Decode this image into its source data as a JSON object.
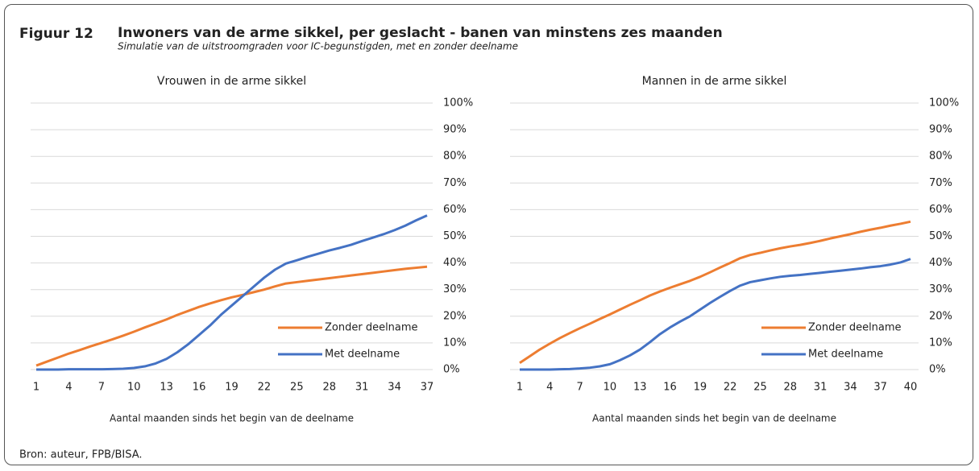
{
  "figure": {
    "number": "Figuur 12",
    "title": "Inwoners van de arme sikkel, per geslacht - banen van minstens zes maanden",
    "subtitle": "Simulatie van de uitstroomgraden voor IC-begunstigden, met en zonder deelname",
    "source": "Bron: auteur, FPB/BISA."
  },
  "chart_data": [
    {
      "type": "line",
      "title": "Vrouwen in de arme sikkel",
      "x_label": "Aantal maanden sinds het begin van de deelname",
      "x": [
        1,
        2,
        3,
        4,
        5,
        6,
        7,
        8,
        9,
        10,
        11,
        12,
        13,
        14,
        15,
        16,
        17,
        18,
        19,
        20,
        21,
        22,
        23,
        24,
        25,
        26,
        27,
        28,
        29,
        30,
        31,
        32,
        33,
        34,
        35,
        36,
        37
      ],
      "series": [
        {
          "name": "Zonder deelname",
          "color": "#ed7d31",
          "values": [
            1.5,
            3,
            4.5,
            6,
            7.3,
            8.7,
            10,
            11.3,
            12.7,
            14.2,
            15.8,
            17.3,
            18.8,
            20.5,
            22,
            23.5,
            24.8,
            26,
            27.1,
            28,
            29,
            30,
            31.2,
            32.3,
            32.8,
            33.3,
            33.8,
            34.3,
            34.8,
            35.3,
            35.8,
            36.3,
            36.8,
            37.3,
            37.8,
            38.2,
            38.6
          ]
        },
        {
          "name": "Met deelname",
          "color": "#4472c4",
          "values": [
            0,
            0,
            0,
            0.1,
            0.1,
            0.1,
            0.1,
            0.2,
            0.3,
            0.6,
            1.2,
            2.3,
            4,
            6.5,
            9.5,
            13,
            16.5,
            20.5,
            24,
            27.5,
            31,
            34.5,
            37.5,
            39.8,
            41,
            42.3,
            43.5,
            44.7,
            45.7,
            46.8,
            48.2,
            49.5,
            50.8,
            52.3,
            54,
            56,
            57.8
          ]
        }
      ],
      "xlim": [
        1,
        37
      ],
      "xticks": [
        1,
        4,
        7,
        10,
        13,
        16,
        19,
        22,
        25,
        28,
        31,
        34,
        37
      ],
      "ylim": [
        0,
        100
      ],
      "yticks": [
        {
          "value": 0,
          "label": "0%"
        },
        {
          "value": 10,
          "label": "10%"
        },
        {
          "value": 20,
          "label": "20%"
        },
        {
          "value": 30,
          "label": "30%"
        },
        {
          "value": 40,
          "label": "40%"
        },
        {
          "value": 50,
          "label": "50%"
        },
        {
          "value": 60,
          "label": "60%"
        },
        {
          "value": 70,
          "label": "70%"
        },
        {
          "value": 80,
          "label": "80%"
        },
        {
          "value": 90,
          "label": "90%"
        },
        {
          "value": 100,
          "label": "100%"
        }
      ],
      "y_axis_side": "right",
      "grid": true,
      "legend": "lower right"
    },
    {
      "type": "line",
      "title": "Mannen in de arme sikkel",
      "x_label": "Aantal maanden sinds het begin van de deelname",
      "x": [
        1,
        2,
        3,
        4,
        5,
        6,
        7,
        8,
        9,
        10,
        11,
        12,
        13,
        14,
        15,
        16,
        17,
        18,
        19,
        20,
        21,
        22,
        23,
        24,
        25,
        26,
        27,
        28,
        29,
        30,
        31,
        32,
        33,
        34,
        35,
        36,
        37,
        38,
        39,
        40
      ],
      "series": [
        {
          "name": "Zonder deelname",
          "color": "#ed7d31",
          "values": [
            2.5,
            5,
            7.5,
            9.7,
            11.8,
            13.7,
            15.5,
            17.2,
            19,
            20.7,
            22.5,
            24.3,
            26,
            27.8,
            29.3,
            30.7,
            32,
            33.3,
            34.8,
            36.5,
            38.3,
            40,
            41.8,
            43,
            43.8,
            44.7,
            45.5,
            46.2,
            46.8,
            47.5,
            48.3,
            49.2,
            50,
            50.8,
            51.7,
            52.5,
            53.2,
            54,
            54.7,
            55.5
          ]
        },
        {
          "name": "Met deelname",
          "color": "#4472c4",
          "values": [
            0,
            0,
            0,
            0,
            0.1,
            0.2,
            0.4,
            0.7,
            1.2,
            2,
            3.5,
            5.3,
            7.5,
            10.3,
            13.3,
            15.8,
            18,
            20,
            22.5,
            25,
            27.3,
            29.5,
            31.5,
            32.8,
            33.5,
            34.2,
            34.8,
            35.2,
            35.5,
            35.9,
            36.3,
            36.7,
            37.1,
            37.5,
            37.9,
            38.4,
            38.8,
            39.4,
            40.2,
            41.5
          ]
        }
      ],
      "xlim": [
        1,
        40
      ],
      "xticks": [
        1,
        4,
        7,
        10,
        13,
        16,
        19,
        22,
        25,
        28,
        31,
        34,
        37,
        40
      ],
      "ylim": [
        0,
        100
      ],
      "yticks": [
        {
          "value": 0,
          "label": "0%"
        },
        {
          "value": 10,
          "label": "10%"
        },
        {
          "value": 20,
          "label": "20%"
        },
        {
          "value": 30,
          "label": "30%"
        },
        {
          "value": 40,
          "label": "40%"
        },
        {
          "value": 50,
          "label": "50%"
        },
        {
          "value": 60,
          "label": "60%"
        },
        {
          "value": 70,
          "label": "70%"
        },
        {
          "value": 80,
          "label": "80%"
        },
        {
          "value": 90,
          "label": "90%"
        },
        {
          "value": 100,
          "label": "100%"
        }
      ],
      "y_axis_side": "right",
      "grid": true,
      "legend": "lower right"
    }
  ]
}
